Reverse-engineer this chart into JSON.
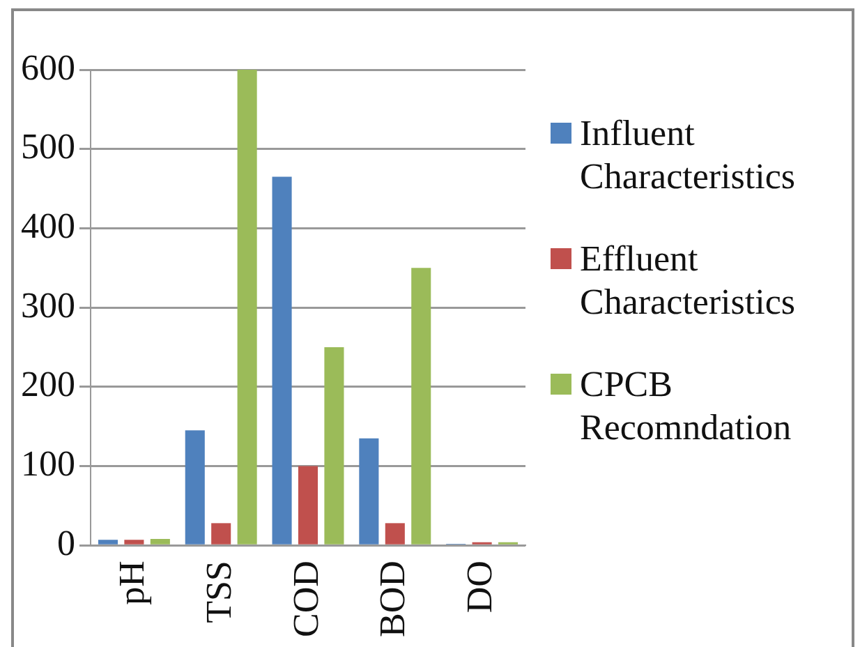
{
  "chart_data": {
    "type": "bar",
    "categories": [
      "pH",
      "TSS",
      "COD",
      "BOD",
      "DO"
    ],
    "series": [
      {
        "name": "Influent Characteristics",
        "color": "#4f81bd",
        "values": [
          7,
          145,
          465,
          135,
          2
        ]
      },
      {
        "name": "Effluent Characteristics",
        "color": "#c0504d",
        "values": [
          7,
          28,
          100,
          28,
          4
        ]
      },
      {
        "name": "CPCB Recomndation",
        "color": "#9bbb59",
        "values": [
          8,
          600,
          250,
          350,
          4
        ]
      }
    ],
    "ylim": [
      0,
      600
    ],
    "yticks": [
      0,
      100,
      200,
      300,
      400,
      500,
      600
    ],
    "grid": "y",
    "legend": "right"
  }
}
